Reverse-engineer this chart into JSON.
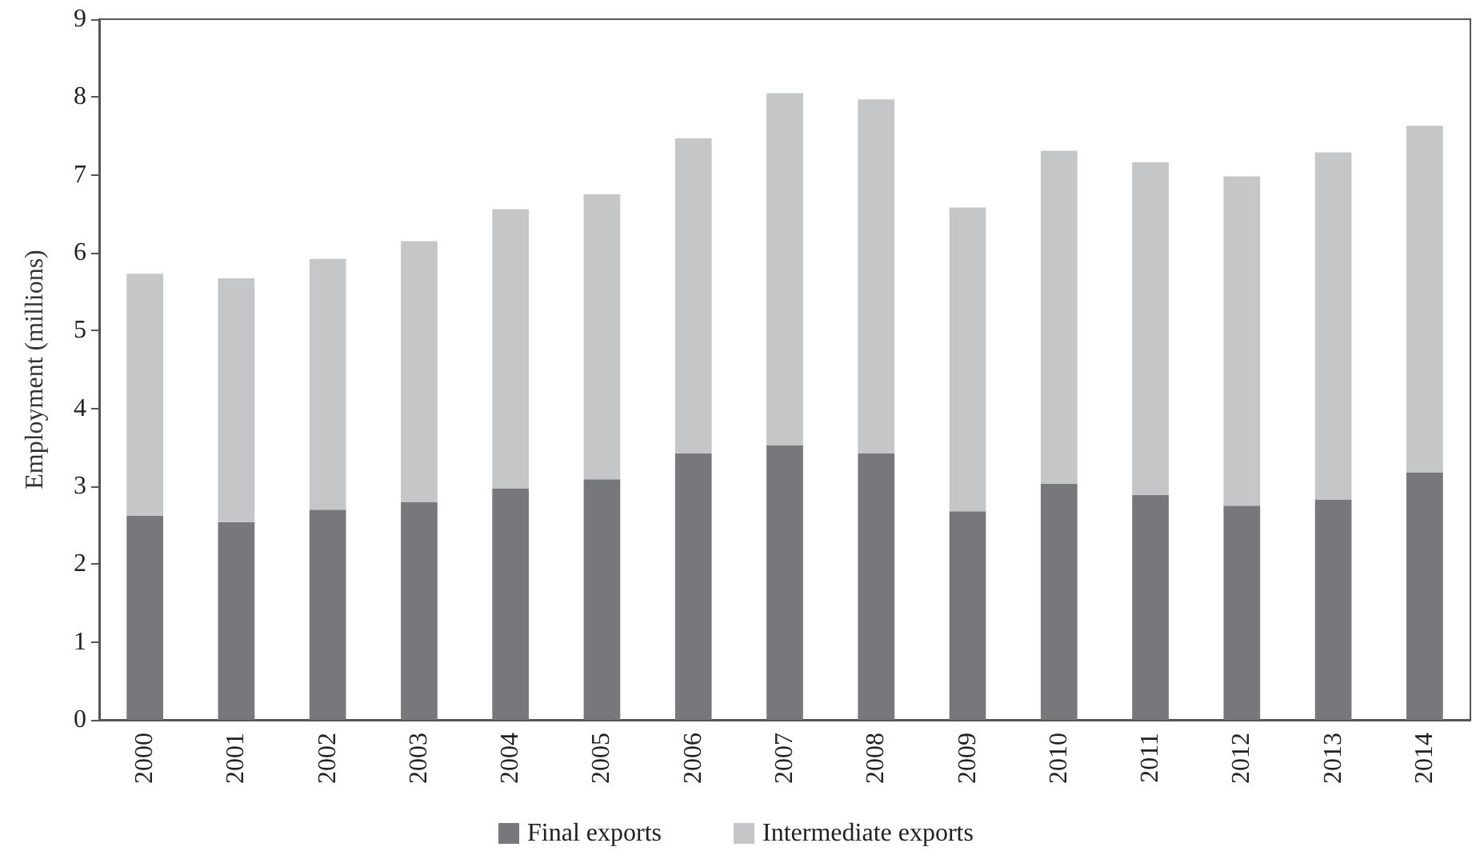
{
  "chart_data": {
    "type": "bar",
    "stacked": true,
    "ylabel": "Employment (millions)",
    "categories": [
      "2000",
      "2001",
      "2002",
      "2003",
      "2004",
      "2005",
      "2006",
      "2007",
      "2008",
      "2009",
      "2010",
      "2011",
      "2012",
      "2013",
      "2014"
    ],
    "series": [
      {
        "name": "Final exports",
        "color": "#78787c",
        "values": [
          2.62,
          2.54,
          2.7,
          2.8,
          2.97,
          3.09,
          3.42,
          3.53,
          3.42,
          2.68,
          3.03,
          2.89,
          2.75,
          2.83,
          3.18
        ]
      },
      {
        "name": "Intermediate exports",
        "color": "#c5c6c8",
        "values": [
          3.11,
          3.13,
          3.22,
          3.35,
          3.59,
          3.66,
          4.05,
          4.52,
          4.55,
          3.9,
          4.28,
          4.27,
          4.23,
          4.46,
          4.45
        ]
      }
    ],
    "ylim": [
      0,
      9
    ],
    "yticks": [
      0,
      1,
      2,
      3,
      4,
      5,
      6,
      7,
      8,
      9
    ],
    "grid": false,
    "legend": "bottom"
  }
}
